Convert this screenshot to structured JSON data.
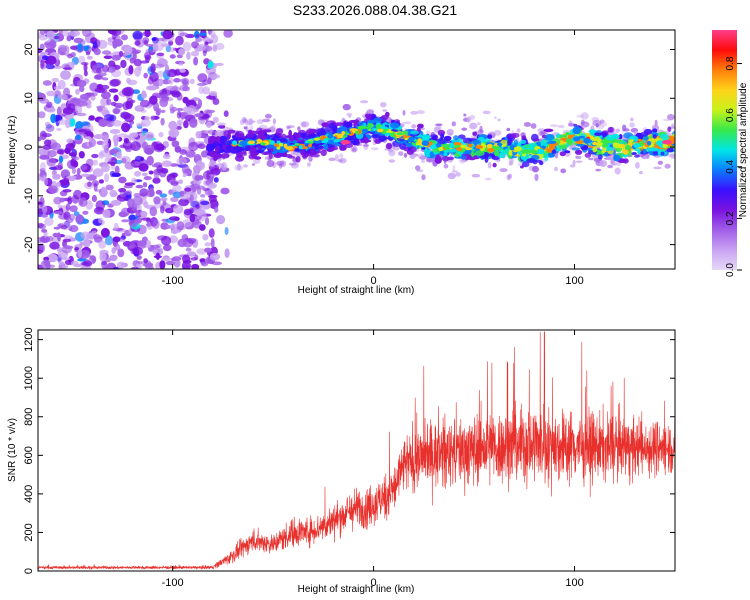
{
  "title": "S233.2026.088.04.38.G21",
  "colors": {
    "snr_line": "#e8302c",
    "spectrogram_palette": [
      "#e6d9f7",
      "#c9a3f2",
      "#a15ee8",
      "#7a13e0",
      "#3a10ff",
      "#0a7dff",
      "#00e6e6",
      "#35e84a",
      "#c9f21a",
      "#ffd21a",
      "#ff7f0a",
      "#ff0a0a",
      "#ff3d8a"
    ]
  },
  "chart_data": [
    {
      "type": "heatmap",
      "name": "spectrogram",
      "xlabel": "Height of straight line (km)",
      "ylabel": "Frequency (Hz)",
      "xlim": [
        -167,
        150
      ],
      "ylim": [
        -25,
        24
      ],
      "x_ticks": [
        -100,
        0,
        100
      ],
      "y_ticks": [
        -20,
        -10,
        0,
        10,
        20
      ],
      "colorbar": {
        "label": "Normalized spectral amplitude",
        "range": [
          0.0,
          0.93
        ],
        "ticks": [
          0.0,
          0.2,
          0.4,
          0.6,
          0.8
        ],
        "tick_labels": [
          "0.0",
          "0.2",
          "0.4",
          "0.6",
          "0.8"
        ]
      },
      "signal_band": {
        "x_start": -82,
        "x_end": 150,
        "center_freq_hz": [
          [
            -82,
            0
          ],
          [
            -60,
            1
          ],
          [
            -40,
            0
          ],
          [
            -20,
            2
          ],
          [
            -10,
            3
          ],
          [
            0,
            4
          ],
          [
            10,
            3
          ],
          [
            30,
            0
          ],
          [
            60,
            0
          ],
          [
            80,
            -1
          ],
          [
            100,
            2
          ],
          [
            120,
            0
          ],
          [
            150,
            1
          ]
        ],
        "peak_amplitude": 0.93
      },
      "noise_region": {
        "x_start": -167,
        "x_end": -78,
        "freq_range_hz": [
          -25,
          24
        ],
        "typical_amplitude": 0.15
      }
    },
    {
      "type": "line",
      "name": "snr",
      "xlabel": "Height of straight line (km)",
      "ylabel": "SNR (10 * v/v)",
      "xlim": [
        -167,
        150
      ],
      "ylim": [
        0,
        1250
      ],
      "x_ticks": [
        -100,
        0,
        100
      ],
      "y_ticks": [
        0,
        200,
        400,
        600,
        800,
        1000,
        1200
      ],
      "series": [
        {
          "name": "SNR",
          "envelope_mean": [
            [
              -167,
              18
            ],
            [
              -90,
              18
            ],
            [
              -80,
              20
            ],
            [
              -70,
              80
            ],
            [
              -60,
              160
            ],
            [
              -50,
              140
            ],
            [
              -40,
              200
            ],
            [
              -30,
              210
            ],
            [
              -20,
              260
            ],
            [
              -10,
              320
            ],
            [
              0,
              340
            ],
            [
              10,
              420
            ],
            [
              15,
              550
            ],
            [
              25,
              600
            ],
            [
              40,
              620
            ],
            [
              60,
              640
            ],
            [
              80,
              660
            ],
            [
              100,
              650
            ],
            [
              120,
              640
            ],
            [
              150,
              640
            ]
          ],
          "envelope_spread": [
            [
              -167,
              12
            ],
            [
              -90,
              12
            ],
            [
              -80,
              15
            ],
            [
              -70,
              60
            ],
            [
              -60,
              90
            ],
            [
              -50,
              80
            ],
            [
              -40,
              120
            ],
            [
              -30,
              110
            ],
            [
              -20,
              130
            ],
            [
              -10,
              160
            ],
            [
              0,
              170
            ],
            [
              10,
              200
            ],
            [
              20,
              250
            ],
            [
              40,
              280
            ],
            [
              60,
              290
            ],
            [
              80,
              320
            ],
            [
              100,
              280
            ],
            [
              120,
              260
            ],
            [
              150,
              200
            ]
          ],
          "max_value": 1240,
          "max_value_at": 85
        }
      ]
    }
  ]
}
